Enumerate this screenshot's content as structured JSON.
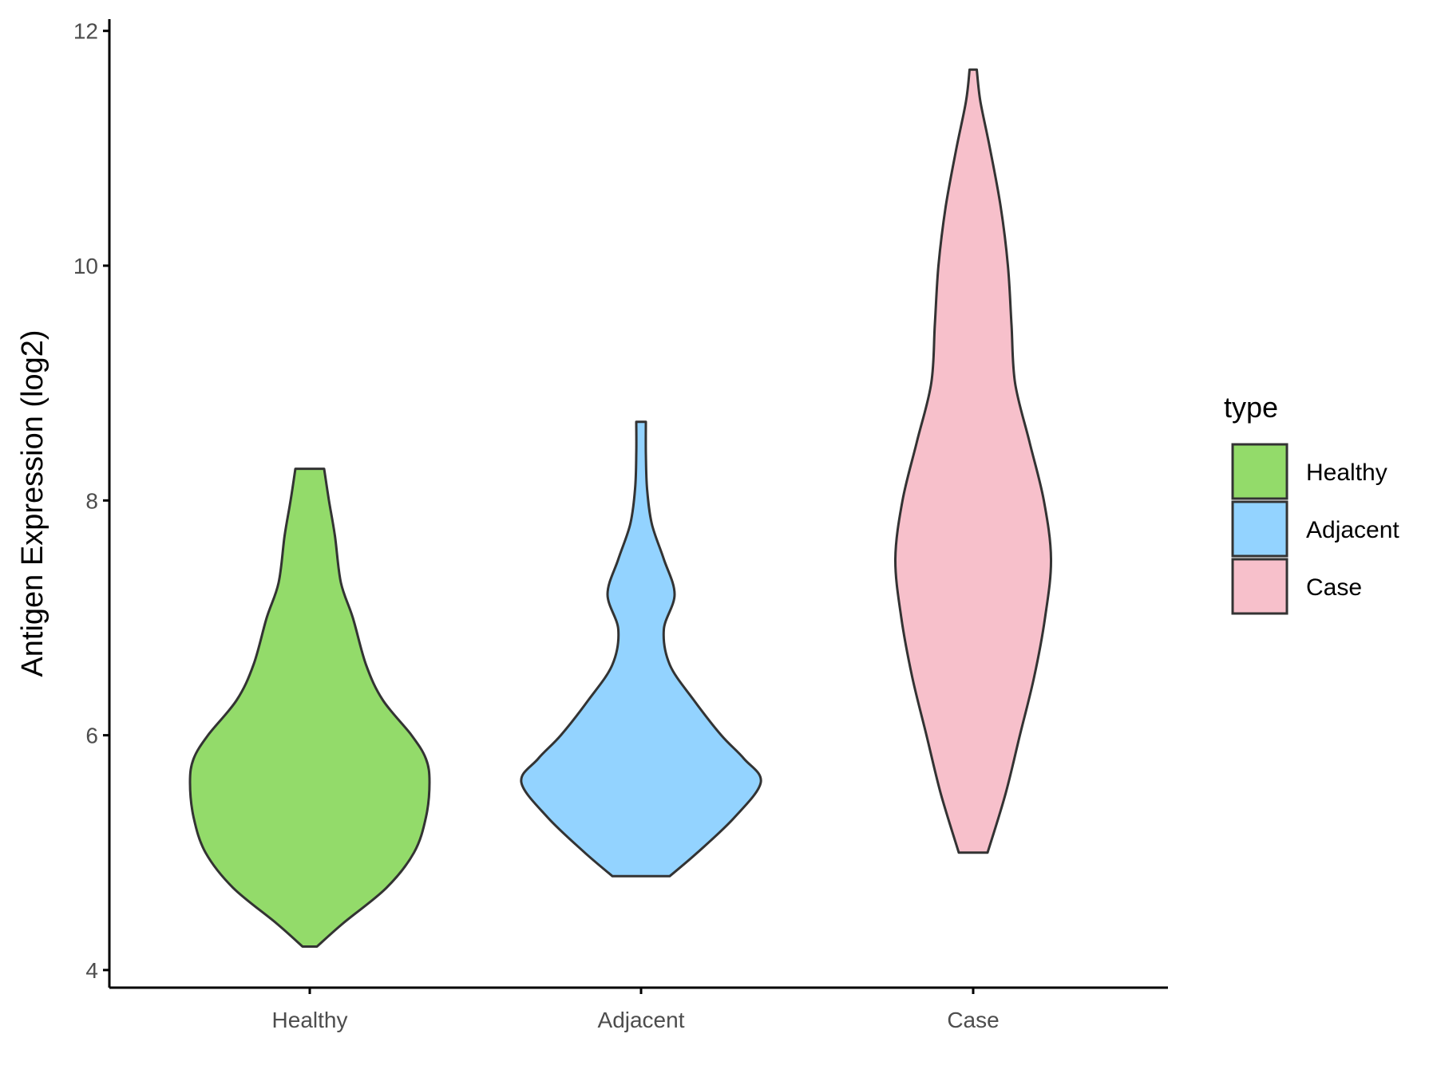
{
  "chart_data": {
    "type": "violin",
    "ylabel": "Antigen Expression (log2)",
    "xlabel": "",
    "categories": [
      "Healthy",
      "Adjacent",
      "Case"
    ],
    "ylim": [
      3.85,
      12.1
    ],
    "yticks": [
      4,
      6,
      8,
      10,
      12
    ],
    "grid": false,
    "legend": {
      "title": "type",
      "position": "right",
      "entries": [
        {
          "label": "Healthy",
          "color": "#93DB6A"
        },
        {
          "label": "Adjacent",
          "color": "#93D3FF"
        },
        {
          "label": "Case",
          "color": "#F7C0CB"
        }
      ]
    },
    "series": [
      {
        "name": "Healthy",
        "color": "#93DB6A",
        "min": 4.2,
        "max": 8.27,
        "profile": [
          [
            4.2,
            0.06
          ],
          [
            4.4,
            0.28
          ],
          [
            4.7,
            0.64
          ],
          [
            5.0,
            0.87
          ],
          [
            5.3,
            0.97
          ],
          [
            5.6,
            1.0
          ],
          [
            5.8,
            0.97
          ],
          [
            6.0,
            0.85
          ],
          [
            6.3,
            0.61
          ],
          [
            6.6,
            0.47
          ],
          [
            7.0,
            0.36
          ],
          [
            7.3,
            0.26
          ],
          [
            7.7,
            0.21
          ],
          [
            8.0,
            0.16
          ],
          [
            8.27,
            0.12
          ]
        ]
      },
      {
        "name": "Adjacent",
        "color": "#93D3FF",
        "min": 4.8,
        "max": 8.67,
        "profile": [
          [
            4.8,
            0.24
          ],
          [
            5.0,
            0.47
          ],
          [
            5.3,
            0.78
          ],
          [
            5.6,
            1.0
          ],
          [
            5.8,
            0.86
          ],
          [
            6.0,
            0.67
          ],
          [
            6.3,
            0.44
          ],
          [
            6.6,
            0.24
          ],
          [
            6.9,
            0.19
          ],
          [
            7.2,
            0.28
          ],
          [
            7.5,
            0.19
          ],
          [
            7.8,
            0.09
          ],
          [
            8.1,
            0.05
          ],
          [
            8.4,
            0.04
          ],
          [
            8.67,
            0.04
          ]
        ]
      },
      {
        "name": "Case",
        "color": "#F7C0CB",
        "min": 5.0,
        "max": 11.67,
        "profile": [
          [
            5.0,
            0.12
          ],
          [
            5.5,
            0.27
          ],
          [
            6.0,
            0.39
          ],
          [
            6.5,
            0.51
          ],
          [
            7.0,
            0.6
          ],
          [
            7.5,
            0.65
          ],
          [
            8.0,
            0.59
          ],
          [
            8.5,
            0.47
          ],
          [
            9.0,
            0.35
          ],
          [
            9.5,
            0.32
          ],
          [
            10.0,
            0.29
          ],
          [
            10.5,
            0.23
          ],
          [
            11.0,
            0.14
          ],
          [
            11.4,
            0.06
          ],
          [
            11.67,
            0.03
          ]
        ]
      }
    ]
  }
}
